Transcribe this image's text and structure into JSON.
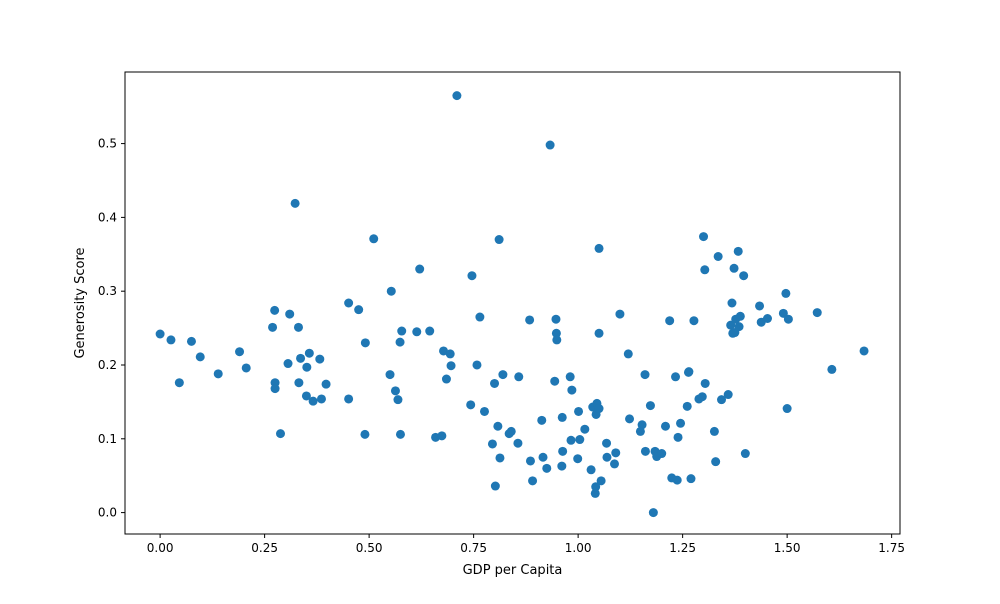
{
  "chart_data": {
    "type": "scatter",
    "title": "",
    "xlabel": "GDP per Capita",
    "ylabel": "Generosity Score",
    "xlim": [
      -0.084,
      1.77
    ],
    "ylim": [
      -0.029,
      0.597
    ],
    "xticks": [
      0.0,
      0.25,
      0.5,
      0.75,
      1.0,
      1.25,
      1.5,
      1.75
    ],
    "xtick_labels": [
      "0.00",
      "0.25",
      "0.50",
      "0.75",
      "1.00",
      "1.25",
      "1.50",
      "1.75"
    ],
    "yticks": [
      0.0,
      0.1,
      0.2,
      0.3,
      0.4,
      0.5
    ],
    "ytick_labels": [
      "0.0",
      "0.1",
      "0.2",
      "0.3",
      "0.4",
      "0.5"
    ],
    "grid": false,
    "legend": "none",
    "marker_color": "#1f77b4",
    "points": [
      [
        0.0,
        0.242
      ],
      [
        0.026,
        0.234
      ],
      [
        0.046,
        0.176
      ],
      [
        0.075,
        0.232
      ],
      [
        0.096,
        0.211
      ],
      [
        0.139,
        0.188
      ],
      [
        0.19,
        0.218
      ],
      [
        0.206,
        0.196
      ],
      [
        0.269,
        0.251
      ],
      [
        0.274,
        0.274
      ],
      [
        0.275,
        0.176
      ],
      [
        0.275,
        0.168
      ],
      [
        0.288,
        0.107
      ],
      [
        0.306,
        0.202
      ],
      [
        0.31,
        0.269
      ],
      [
        0.323,
        0.419
      ],
      [
        0.331,
        0.251
      ],
      [
        0.332,
        0.176
      ],
      [
        0.336,
        0.209
      ],
      [
        0.35,
        0.158
      ],
      [
        0.351,
        0.197
      ],
      [
        0.357,
        0.216
      ],
      [
        0.366,
        0.151
      ],
      [
        0.382,
        0.208
      ],
      [
        0.386,
        0.154
      ],
      [
        0.397,
        0.174
      ],
      [
        0.451,
        0.284
      ],
      [
        0.451,
        0.154
      ],
      [
        0.475,
        0.275
      ],
      [
        0.491,
        0.23
      ],
      [
        0.49,
        0.106
      ],
      [
        0.511,
        0.371
      ],
      [
        0.55,
        0.187
      ],
      [
        0.553,
        0.3
      ],
      [
        0.563,
        0.165
      ],
      [
        0.569,
        0.153
      ],
      [
        0.574,
        0.231
      ],
      [
        0.575,
        0.106
      ],
      [
        0.578,
        0.246
      ],
      [
        0.614,
        0.245
      ],
      [
        0.621,
        0.33
      ],
      [
        0.645,
        0.246
      ],
      [
        0.659,
        0.102
      ],
      [
        0.674,
        0.104
      ],
      [
        0.678,
        0.219
      ],
      [
        0.685,
        0.181
      ],
      [
        0.694,
        0.215
      ],
      [
        0.696,
        0.199
      ],
      [
        0.71,
        0.565
      ],
      [
        0.743,
        0.146
      ],
      [
        0.746,
        0.321
      ],
      [
        0.758,
        0.2
      ],
      [
        0.765,
        0.265
      ],
      [
        0.776,
        0.137
      ],
      [
        0.795,
        0.093
      ],
      [
        0.8,
        0.175
      ],
      [
        0.802,
        0.036
      ],
      [
        0.808,
        0.117
      ],
      [
        0.811,
        0.37
      ],
      [
        0.813,
        0.074
      ],
      [
        0.82,
        0.187
      ],
      [
        0.835,
        0.107
      ],
      [
        0.84,
        0.11
      ],
      [
        0.856,
        0.094
      ],
      [
        0.858,
        0.184
      ],
      [
        0.884,
        0.261
      ],
      [
        0.886,
        0.07
      ],
      [
        0.891,
        0.043
      ],
      [
        0.913,
        0.125
      ],
      [
        0.916,
        0.075
      ],
      [
        0.925,
        0.06
      ],
      [
        0.933,
        0.498
      ],
      [
        0.944,
        0.178
      ],
      [
        0.947,
        0.262
      ],
      [
        0.948,
        0.243
      ],
      [
        0.949,
        0.234
      ],
      [
        0.961,
        0.063
      ],
      [
        0.962,
        0.129
      ],
      [
        0.963,
        0.083
      ],
      [
        0.981,
        0.184
      ],
      [
        0.983,
        0.098
      ],
      [
        0.985,
        0.166
      ],
      [
        0.999,
        0.073
      ],
      [
        1.001,
        0.137
      ],
      [
        1.004,
        0.099
      ],
      [
        1.016,
        0.113
      ],
      [
        1.031,
        0.058
      ],
      [
        1.035,
        0.143
      ],
      [
        1.041,
        0.026
      ],
      [
        1.042,
        0.035
      ],
      [
        1.043,
        0.133
      ],
      [
        1.045,
        0.148
      ],
      [
        1.05,
        0.141
      ],
      [
        1.05,
        0.358
      ],
      [
        1.05,
        0.243
      ],
      [
        1.055,
        0.043
      ],
      [
        1.068,
        0.094
      ],
      [
        1.069,
        0.075
      ],
      [
        1.087,
        0.066
      ],
      [
        1.09,
        0.081
      ],
      [
        1.1,
        0.269
      ],
      [
        1.12,
        0.215
      ],
      [
        1.123,
        0.127
      ],
      [
        1.149,
        0.11
      ],
      [
        1.153,
        0.119
      ],
      [
        1.16,
        0.187
      ],
      [
        1.161,
        0.083
      ],
      [
        1.173,
        0.145
      ],
      [
        1.18,
        0.0
      ],
      [
        1.184,
        0.083
      ],
      [
        1.188,
        0.076
      ],
      [
        1.2,
        0.08
      ],
      [
        1.209,
        0.117
      ],
      [
        1.219,
        0.26
      ],
      [
        1.224,
        0.047
      ],
      [
        1.233,
        0.184
      ],
      [
        1.237,
        0.044
      ],
      [
        1.239,
        0.102
      ],
      [
        1.245,
        0.121
      ],
      [
        1.261,
        0.144
      ],
      [
        1.264,
        0.19
      ],
      [
        1.265,
        0.191
      ],
      [
        1.27,
        0.046
      ],
      [
        1.277,
        0.26
      ],
      [
        1.289,
        0.154
      ],
      [
        1.297,
        0.157
      ],
      [
        1.3,
        0.374
      ],
      [
        1.303,
        0.329
      ],
      [
        1.304,
        0.175
      ],
      [
        1.326,
        0.11
      ],
      [
        1.329,
        0.069
      ],
      [
        1.335,
        0.347
      ],
      [
        1.343,
        0.153
      ],
      [
        1.359,
        0.16
      ],
      [
        1.365,
        0.254
      ],
      [
        1.368,
        0.284
      ],
      [
        1.37,
        0.243
      ],
      [
        1.373,
        0.331
      ],
      [
        1.375,
        0.244
      ],
      [
        1.377,
        0.262
      ],
      [
        1.383,
        0.354
      ],
      [
        1.385,
        0.252
      ],
      [
        1.388,
        0.266
      ],
      [
        1.396,
        0.321
      ],
      [
        1.4,
        0.08
      ],
      [
        1.434,
        0.28
      ],
      [
        1.438,
        0.258
      ],
      [
        1.453,
        0.263
      ],
      [
        1.491,
        0.27
      ],
      [
        1.497,
        0.297
      ],
      [
        1.5,
        0.141
      ],
      [
        1.503,
        0.262
      ],
      [
        1.572,
        0.271
      ],
      [
        1.607,
        0.194
      ],
      [
        1.684,
        0.219
      ]
    ]
  }
}
